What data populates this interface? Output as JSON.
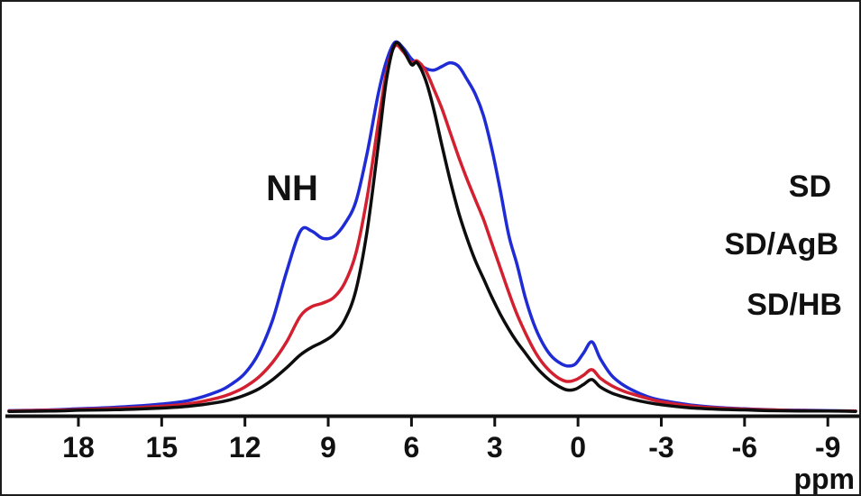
{
  "figure": {
    "annotation_label": "NH",
    "x_axis_unit": "ppm"
  },
  "chart_data": {
    "type": "line",
    "title": "",
    "xlabel": "ppm",
    "ylabel": "",
    "x_axis_reversed": true,
    "xlim": [
      20.5,
      -10
    ],
    "ylim": [
      0,
      1
    ],
    "grid": false,
    "legend_position": "right",
    "x_ticks": [
      18,
      15,
      12,
      9,
      6,
      3,
      0,
      -3,
      -6,
      -9
    ],
    "annotations": [
      {
        "text": "NH",
        "x": 10.3,
        "y": 0.61
      }
    ],
    "x": [
      20.5,
      19,
      18,
      17,
      16,
      15,
      14,
      13,
      12.5,
      12,
      11.5,
      11,
      10.5,
      10,
      9.6,
      9.2,
      8.8,
      8.4,
      8,
      7.6,
      7.2,
      6.9,
      6.6,
      6.3,
      6,
      5.8,
      5.5,
      5.2,
      4.9,
      4.6,
      4.3,
      4,
      3.7,
      3.4,
      3.1,
      2.8,
      2.5,
      2.2,
      1.9,
      1.6,
      1.3,
      1,
      0.7,
      0.4,
      0.1,
      -0.2,
      -0.5,
      -0.8,
      -1.2,
      -1.6,
      -2,
      -2.5,
      -3,
      -4,
      -5,
      -6,
      -7,
      -8,
      -9,
      -10
    ],
    "series": [
      {
        "name": "SD",
        "color": "#1f2bd4",
        "values": [
          0.004,
          0.006,
          0.009,
          0.012,
          0.016,
          0.022,
          0.032,
          0.055,
          0.075,
          0.105,
          0.16,
          0.25,
          0.38,
          0.49,
          0.49,
          0.47,
          0.475,
          0.51,
          0.57,
          0.7,
          0.86,
          0.95,
          1,
          0.985,
          0.955,
          0.945,
          0.93,
          0.925,
          0.935,
          0.945,
          0.935,
          0.9,
          0.86,
          0.8,
          0.71,
          0.6,
          0.48,
          0.4,
          0.31,
          0.24,
          0.19,
          0.155,
          0.135,
          0.125,
          0.13,
          0.16,
          0.19,
          0.145,
          0.1,
          0.075,
          0.058,
          0.042,
          0.032,
          0.02,
          0.013,
          0.009,
          0.006,
          0.005,
          0.004,
          0.003
        ]
      },
      {
        "name": "SD/AgB",
        "color": "#d32030",
        "values": [
          0.003,
          0.005,
          0.007,
          0.009,
          0.012,
          0.016,
          0.023,
          0.038,
          0.05,
          0.068,
          0.095,
          0.135,
          0.19,
          0.26,
          0.285,
          0.295,
          0.31,
          0.35,
          0.43,
          0.58,
          0.78,
          0.92,
          0.99,
          0.975,
          0.945,
          0.95,
          0.925,
          0.875,
          0.82,
          0.755,
          0.69,
          0.63,
          0.575,
          0.52,
          0.455,
          0.39,
          0.325,
          0.265,
          0.215,
          0.17,
          0.135,
          0.11,
          0.092,
          0.083,
          0.087,
          0.1,
          0.115,
          0.092,
          0.072,
          0.058,
          0.048,
          0.037,
          0.028,
          0.017,
          0.011,
          0.008,
          0.006,
          0.004,
          0.003,
          0.003
        ]
      },
      {
        "name": "SD/HB",
        "color": "#0d0d0d",
        "values": [
          0.002,
          0.003,
          0.005,
          0.006,
          0.008,
          0.011,
          0.016,
          0.026,
          0.034,
          0.046,
          0.063,
          0.088,
          0.12,
          0.155,
          0.175,
          0.19,
          0.21,
          0.25,
          0.33,
          0.49,
          0.72,
          0.9,
          0.995,
          0.98,
          0.94,
          0.945,
          0.9,
          0.82,
          0.72,
          0.625,
          0.54,
          0.47,
          0.41,
          0.36,
          0.31,
          0.265,
          0.225,
          0.19,
          0.16,
          0.13,
          0.105,
          0.085,
          0.07,
          0.06,
          0.062,
          0.075,
          0.088,
          0.068,
          0.052,
          0.042,
          0.034,
          0.026,
          0.02,
          0.012,
          0.008,
          0.006,
          0.004,
          0.003,
          0.003,
          0.002
        ]
      }
    ]
  }
}
